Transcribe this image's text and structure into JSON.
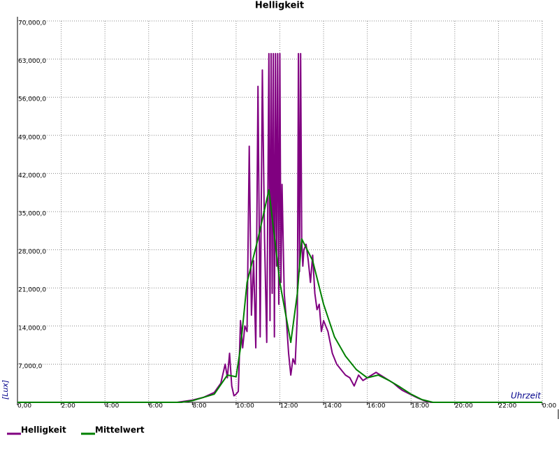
{
  "chart_data": {
    "type": "line",
    "title": "Helligkeit",
    "y_label": "[Lux]",
    "x_label": "Uhrzeit",
    "xlim": [
      0,
      24
    ],
    "ylim": [
      0,
      70000
    ],
    "grid": true,
    "xticks": [
      {
        "value": 0,
        "label": "0,00"
      },
      {
        "value": 2,
        "label": "2:00"
      },
      {
        "value": 4,
        "label": "4:00"
      },
      {
        "value": 6,
        "label": "6:00"
      },
      {
        "value": 8,
        "label": "8:00"
      },
      {
        "value": 10,
        "label": "10:00"
      },
      {
        "value": 12,
        "label": "12:00"
      },
      {
        "value": 14,
        "label": "14:00"
      },
      {
        "value": 16,
        "label": "16:00"
      },
      {
        "value": 18,
        "label": "18:00"
      },
      {
        "value": 20,
        "label": "20:00"
      },
      {
        "value": 22,
        "label": "22:00"
      },
      {
        "value": 24,
        "label": "0:00"
      }
    ],
    "yticks": [
      {
        "value": 7000,
        "label": "7,000,0"
      },
      {
        "value": 14000,
        "label": "14,000,0"
      },
      {
        "value": 21000,
        "label": "21,000,0"
      },
      {
        "value": 28000,
        "label": "28,000,0"
      },
      {
        "value": 35000,
        "label": "35,000,0"
      },
      {
        "value": 42000,
        "label": "42,000,0"
      },
      {
        "value": 49000,
        "label": "49,000,0"
      },
      {
        "value": 56000,
        "label": "56,000,0"
      },
      {
        "value": 63000,
        "label": "63,000,0"
      },
      {
        "value": 70000,
        "label": "70,000,0"
      }
    ],
    "series": [
      {
        "name": "Helligkeit",
        "color": "#800080",
        "x": [
          0,
          7.3,
          8,
          8.5,
          9,
          9.3,
          9.5,
          9.6,
          9.7,
          9.8,
          9.9,
          10,
          10.1,
          10.2,
          10.3,
          10.4,
          10.5,
          10.6,
          10.7,
          10.8,
          10.9,
          11,
          11.1,
          11.2,
          11.3,
          11.4,
          11.5,
          11.55,
          11.6,
          11.65,
          11.7,
          11.75,
          11.8,
          11.85,
          11.9,
          11.95,
          12,
          12.05,
          12.1,
          12.2,
          12.3,
          12.4,
          12.5,
          12.6,
          12.7,
          12.8,
          12.85,
          12.9,
          12.95,
          13,
          13.05,
          13.1,
          13.2,
          13.3,
          13.4,
          13.5,
          13.6,
          13.7,
          13.8,
          13.9,
          14,
          14.2,
          14.4,
          14.6,
          14.8,
          15,
          15.2,
          15.4,
          15.6,
          15.8,
          16,
          16.2,
          16.4,
          16.6,
          16.8,
          17,
          17.2,
          17.4,
          17.6,
          17.8,
          18,
          18.3,
          18.6,
          18.9,
          24
        ],
        "values": [
          0,
          0,
          400,
          900,
          1800,
          3500,
          7000,
          4500,
          9000,
          3000,
          1200,
          1500,
          2000,
          15000,
          10000,
          14000,
          13000,
          47000,
          16000,
          26000,
          10000,
          58000,
          12000,
          61000,
          30000,
          11000,
          64000,
          15000,
          64000,
          20000,
          64000,
          12000,
          64000,
          25000,
          64000,
          18000,
          64000,
          22000,
          40000,
          20000,
          15000,
          9000,
          5000,
          8000,
          7000,
          16000,
          64000,
          24000,
          64000,
          30000,
          25000,
          28000,
          29000,
          26000,
          22000,
          27000,
          20000,
          17000,
          18000,
          13000,
          15000,
          13000,
          9000,
          7000,
          6000,
          5000,
          4500,
          3000,
          5000,
          4000,
          4500,
          5000,
          5500,
          5000,
          4500,
          4000,
          3500,
          2800,
          2200,
          1800,
          1400,
          800,
          300,
          0,
          0
        ]
      },
      {
        "name": "Mittelwert",
        "color": "#008000",
        "x": [
          0,
          7.5,
          8,
          9,
          9.6,
          10,
          10.2,
          10.5,
          11,
          11.5,
          12,
          12.5,
          12.8,
          13,
          13.5,
          14,
          14.5,
          15,
          15.5,
          16,
          16.5,
          17,
          17.5,
          18,
          18.5,
          19,
          24
        ],
        "values": [
          0,
          0,
          300,
          1500,
          5000,
          4700,
          10000,
          22000,
          30000,
          39000,
          22000,
          11000,
          20000,
          30000,
          26000,
          18000,
          12000,
          8500,
          6000,
          4500,
          5000,
          4000,
          2800,
          1500,
          500,
          0,
          0
        ]
      }
    ]
  }
}
